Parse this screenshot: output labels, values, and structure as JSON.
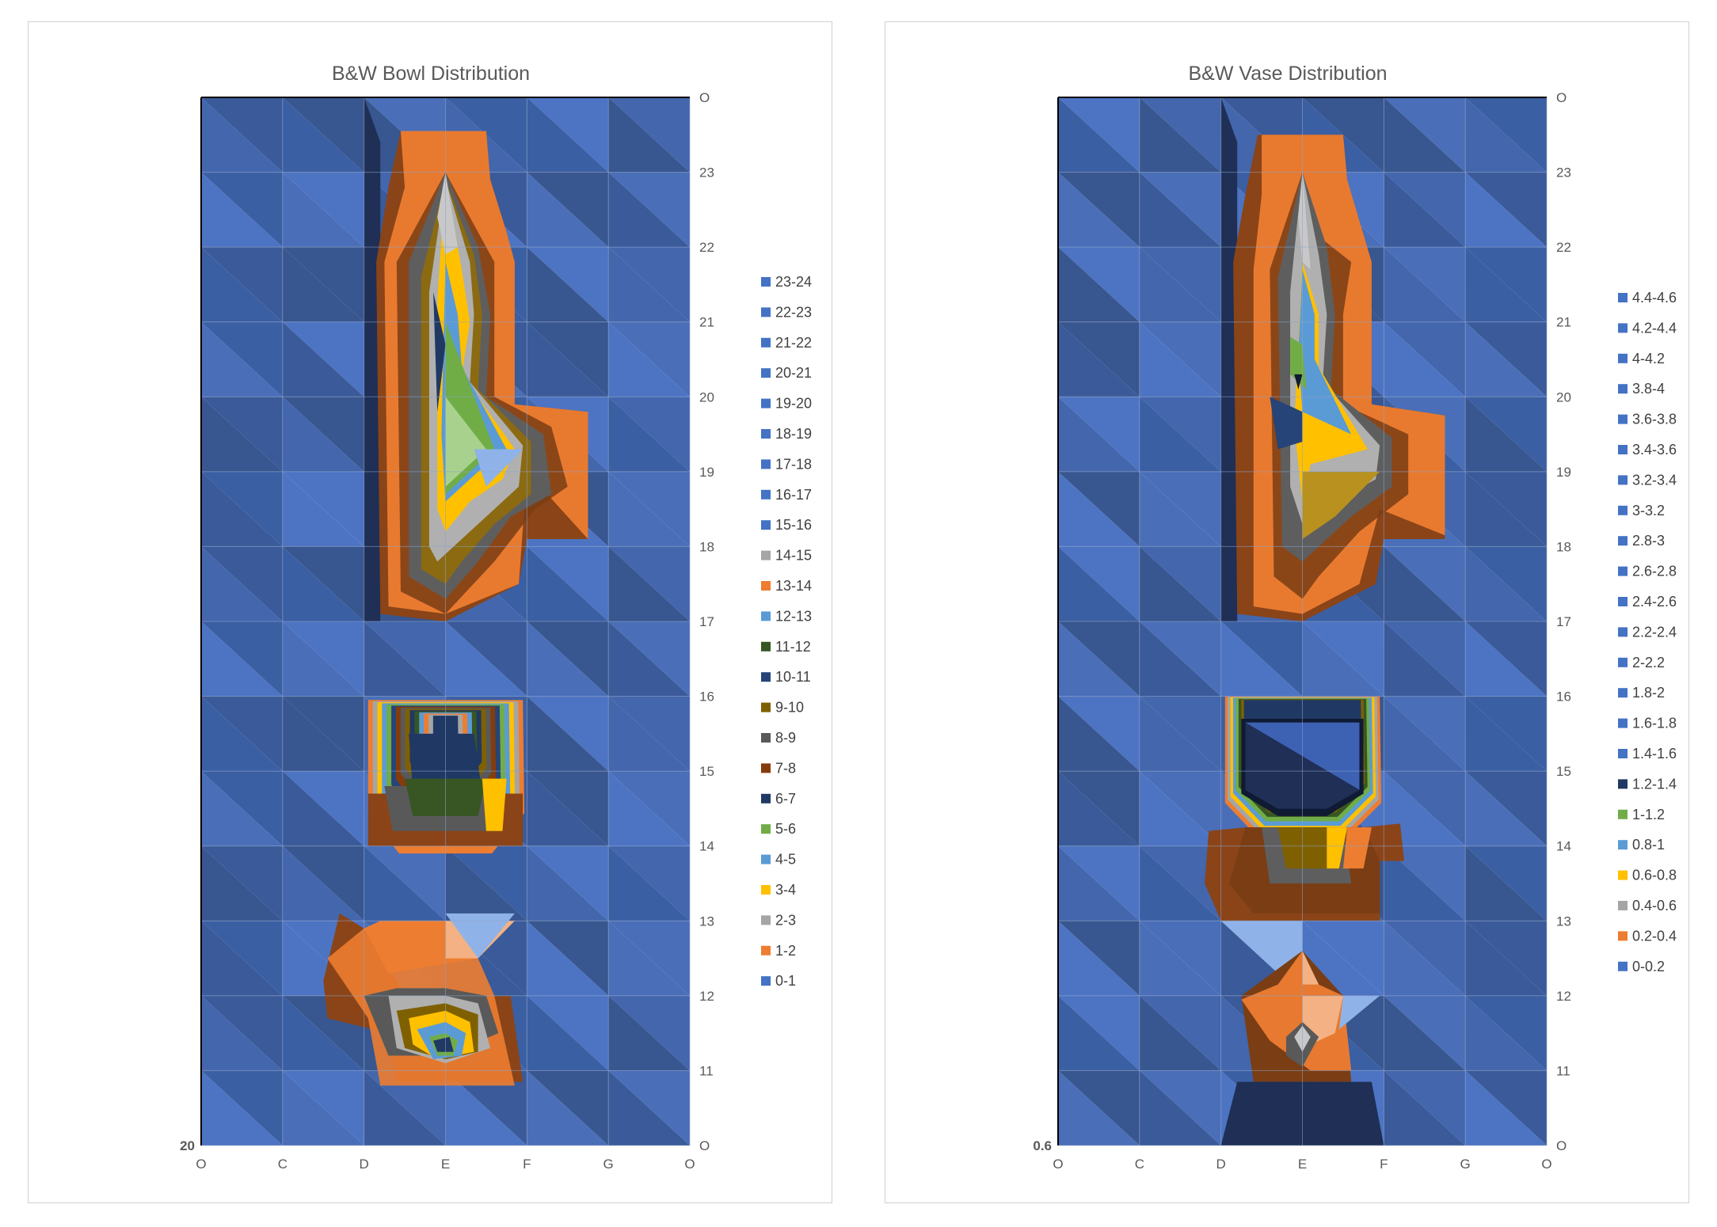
{
  "chart_data": [
    {
      "type": "contour",
      "title": "B&W Bowl Distribution",
      "x_categories": [
        "O",
        "C",
        "D",
        "E",
        "F",
        "G",
        "O"
      ],
      "y_ticks_top_to_bottom": [
        "O",
        "23",
        "22",
        "21",
        "20",
        "19",
        "18",
        "17",
        "16",
        "15",
        "14",
        "13",
        "12",
        "11",
        "O"
      ],
      "bottom_left_label": "20",
      "legend_position": "right",
      "legend": [
        "23-24",
        "22-23",
        "21-22",
        "20-21",
        "19-20",
        "18-19",
        "17-18",
        "16-17",
        "15-16",
        "14-15",
        "13-14",
        "12-13",
        "11-12",
        "10-11",
        "9-10",
        "8-9",
        "7-8",
        "6-7",
        "5-6",
        "4-5",
        "3-4",
        "2-3",
        "1-2",
        "0-1"
      ],
      "legend_colors": [
        "#4472c4",
        "#4472c4",
        "#4472c4",
        "#4472c4",
        "#4472c4",
        "#4472c4",
        "#4472c4",
        "#4472c4",
        "#4472c4",
        "#a5a5a5",
        "#ed7d31",
        "#5b9bd5",
        "#375623",
        "#264478",
        "#7f6000",
        "#595959",
        "#843c0c",
        "#203864",
        "#70ad47",
        "#5b9bd5",
        "#ffc000",
        "#a5a5a5",
        "#ed7d31",
        "#4472c4"
      ]
    },
    {
      "type": "contour",
      "title": "B&W Vase Distribution",
      "x_categories": [
        "O",
        "C",
        "D",
        "E",
        "F",
        "G",
        "O"
      ],
      "y_ticks_top_to_bottom": [
        "O",
        "23",
        "22",
        "21",
        "20",
        "19",
        "18",
        "17",
        "16",
        "15",
        "14",
        "13",
        "12",
        "11",
        "O"
      ],
      "bottom_left_label": "0.6",
      "legend_position": "right",
      "legend": [
        "4.4-4.6",
        "4.2-4.4",
        "4-4.2",
        "3.8-4",
        "3.6-3.8",
        "3.4-3.6",
        "3.2-3.4",
        "3-3.2",
        "2.8-3",
        "2.6-2.8",
        "2.4-2.6",
        "2.2-2.4",
        "2-2.2",
        "1.8-2",
        "1.6-1.8",
        "1.4-1.6",
        "1.2-1.4",
        "1-1.2",
        "0.8-1",
        "0.6-0.8",
        "0.4-0.6",
        "0.2-0.4",
        "0-0.2"
      ],
      "legend_colors": [
        "#4472c4",
        "#4472c4",
        "#4472c4",
        "#4472c4",
        "#4472c4",
        "#4472c4",
        "#4472c4",
        "#4472c4",
        "#4472c4",
        "#4472c4",
        "#4472c4",
        "#4472c4",
        "#4472c4",
        "#4472c4",
        "#4472c4",
        "#4472c4",
        "#203864",
        "#70ad47",
        "#5b9bd5",
        "#ffc000",
        "#a5a5a5",
        "#ed7d31",
        "#4472c4"
      ]
    }
  ]
}
